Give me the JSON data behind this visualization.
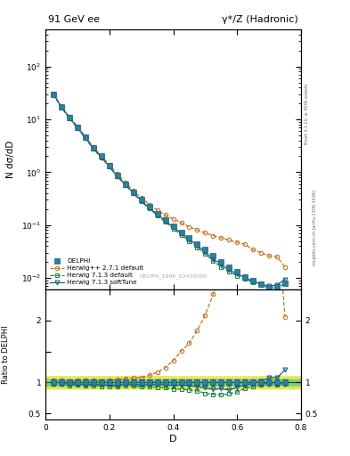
{
  "title_left": "91 GeV ee",
  "title_right": "γ*/Z (Hadronic)",
  "ylabel_main": "N dσ/dD",
  "ylabel_ratio": "Ratio to DELPHI",
  "xlabel": "D",
  "right_label_top": "Rivet 3.1.10, ≥ 400k events",
  "right_label_bottom": "mcplots.cern.ch [arXiv:1306.3436]",
  "watermark": "DELPHI_1996_S3430090",
  "delphi_x": [
    0.025,
    0.05,
    0.075,
    0.1,
    0.125,
    0.15,
    0.175,
    0.2,
    0.225,
    0.25,
    0.275,
    0.3,
    0.325,
    0.35,
    0.375,
    0.4,
    0.425,
    0.45,
    0.475,
    0.5,
    0.525,
    0.55,
    0.575,
    0.6,
    0.625,
    0.65,
    0.675,
    0.7,
    0.725,
    0.75
  ],
  "delphi_y": [
    30.0,
    17.0,
    11.0,
    7.2,
    4.6,
    2.9,
    2.0,
    1.35,
    0.88,
    0.6,
    0.42,
    0.3,
    0.22,
    0.165,
    0.125,
    0.096,
    0.073,
    0.057,
    0.044,
    0.034,
    0.026,
    0.02,
    0.016,
    0.013,
    0.0105,
    0.0088,
    0.0075,
    0.0065,
    0.0068,
    0.0078
  ],
  "delphi_yerr": [
    1.5,
    0.85,
    0.55,
    0.36,
    0.23,
    0.145,
    0.1,
    0.068,
    0.044,
    0.03,
    0.021,
    0.015,
    0.011,
    0.0083,
    0.0063,
    0.0048,
    0.00365,
    0.00285,
    0.0022,
    0.0017,
    0.0013,
    0.001,
    0.0008,
    0.00065,
    0.000525,
    0.00044,
    0.000375,
    0.000325,
    0.00034,
    0.00039
  ],
  "herwig_pp_x": [
    0.025,
    0.05,
    0.075,
    0.1,
    0.125,
    0.15,
    0.175,
    0.2,
    0.225,
    0.25,
    0.275,
    0.3,
    0.325,
    0.35,
    0.375,
    0.4,
    0.425,
    0.45,
    0.475,
    0.5,
    0.525,
    0.55,
    0.575,
    0.6,
    0.625,
    0.65,
    0.675,
    0.7,
    0.725,
    0.75
  ],
  "herwig_pp_y": [
    31.0,
    17.5,
    11.2,
    7.4,
    4.75,
    3.0,
    2.05,
    1.4,
    0.92,
    0.64,
    0.45,
    0.325,
    0.245,
    0.192,
    0.155,
    0.13,
    0.11,
    0.093,
    0.081,
    0.071,
    0.063,
    0.057,
    0.052,
    0.047,
    0.043,
    0.034,
    0.03,
    0.026,
    0.025,
    0.016
  ],
  "herwig713_x": [
    0.025,
    0.05,
    0.075,
    0.1,
    0.125,
    0.15,
    0.175,
    0.2,
    0.225,
    0.25,
    0.275,
    0.3,
    0.325,
    0.35,
    0.375,
    0.4,
    0.425,
    0.45,
    0.475,
    0.5,
    0.525,
    0.55,
    0.575,
    0.6,
    0.625,
    0.65,
    0.675,
    0.7,
    0.725,
    0.75
  ],
  "herwig713_y": [
    29.5,
    16.5,
    10.5,
    6.9,
    4.35,
    2.75,
    1.88,
    1.26,
    0.82,
    0.57,
    0.395,
    0.278,
    0.204,
    0.152,
    0.114,
    0.086,
    0.065,
    0.05,
    0.038,
    0.028,
    0.021,
    0.016,
    0.013,
    0.011,
    0.0095,
    0.0082,
    0.0072,
    0.0065,
    0.0065,
    0.0078
  ],
  "herwig713soft_x": [
    0.025,
    0.05,
    0.075,
    0.1,
    0.125,
    0.15,
    0.175,
    0.2,
    0.225,
    0.25,
    0.275,
    0.3,
    0.325,
    0.35,
    0.375,
    0.4,
    0.425,
    0.45,
    0.475,
    0.5,
    0.525,
    0.55,
    0.575,
    0.6,
    0.625,
    0.65,
    0.675,
    0.7,
    0.725,
    0.75
  ],
  "herwig713soft_y": [
    30.0,
    17.0,
    10.8,
    7.0,
    4.45,
    2.82,
    1.92,
    1.29,
    0.84,
    0.585,
    0.407,
    0.288,
    0.212,
    0.16,
    0.121,
    0.091,
    0.07,
    0.054,
    0.041,
    0.031,
    0.023,
    0.018,
    0.014,
    0.012,
    0.01,
    0.0087,
    0.0076,
    0.007,
    0.0073,
    0.0094
  ],
  "color_delphi": "#1a5c78",
  "color_herwig_pp": "#c07828",
  "color_herwig713": "#228844",
  "color_herwig713soft": "#1a6080",
  "band_inner_color": "#88cc88",
  "band_outer_color": "#e8e850",
  "xlim": [
    0.0,
    0.8
  ],
  "ylim_main": [
    0.006,
    500
  ],
  "ylim_ratio": [
    0.4,
    2.5
  ]
}
